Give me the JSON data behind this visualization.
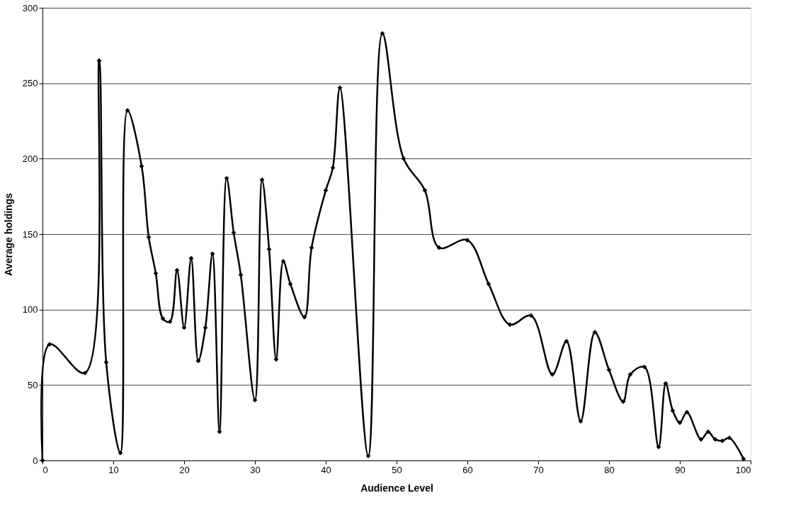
{
  "chart_data": {
    "type": "line",
    "xlabel": "Audience Level",
    "ylabel": "Average holdings",
    "x": [
      0,
      1,
      6,
      8,
      9,
      11,
      12,
      14,
      15,
      16,
      17,
      18,
      19,
      20,
      21,
      22,
      23,
      24,
      25,
      26,
      27,
      28,
      30,
      31,
      32,
      33,
      34,
      35,
      37,
      38,
      40,
      41,
      42,
      46,
      48,
      51,
      54,
      56,
      60,
      63,
      66,
      69,
      72,
      74,
      76,
      78,
      80,
      82,
      83,
      85,
      87,
      88,
      89,
      90,
      91,
      93,
      94,
      95,
      96,
      97,
      99
    ],
    "series": [
      {
        "color": "#000000",
        "values": [
          0,
          77,
          58,
          265,
          65,
          5,
          232,
          195,
          148,
          124,
          94,
          92,
          126,
          88,
          134,
          66,
          88,
          137,
          19,
          187,
          151,
          123,
          40,
          186,
          140,
          67,
          132,
          117,
          95,
          141,
          179,
          194,
          247,
          3,
          283,
          200,
          179,
          141,
          146,
          117,
          90,
          96,
          57,
          79,
          26,
          85,
          60,
          39,
          57,
          62,
          9,
          51,
          33,
          25,
          32,
          14,
          19,
          14,
          13,
          15,
          1
        ]
      }
    ],
    "xlim": [
      0,
      100
    ],
    "xticks": [
      0,
      10,
      20,
      30,
      40,
      50,
      60,
      70,
      80,
      90,
      100
    ],
    "ylim": [
      0,
      300
    ],
    "yticks": [
      0,
      50,
      100,
      150,
      200,
      250,
      300
    ],
    "grid": "y",
    "marker": "diamond",
    "line_style": "solid"
  }
}
